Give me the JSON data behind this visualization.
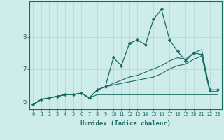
{
  "xlabel": "Humidex (Indice chaleur)",
  "background_color": "#ceecea",
  "grid_color": "#b8d8d6",
  "line_color": "#1a6b63",
  "x_values": [
    0,
    1,
    2,
    3,
    4,
    5,
    6,
    7,
    8,
    9,
    10,
    11,
    12,
    13,
    14,
    15,
    16,
    17,
    18,
    19,
    20,
    21,
    22,
    23
  ],
  "series1": [
    5.9,
    6.05,
    6.1,
    6.15,
    6.2,
    6.2,
    6.25,
    6.1,
    6.35,
    6.45,
    7.35,
    7.1,
    7.8,
    7.9,
    7.75,
    8.55,
    8.85,
    7.9,
    7.55,
    7.25,
    7.5,
    7.45,
    6.35,
    6.35
  ],
  "series2": [
    5.9,
    6.05,
    6.1,
    6.15,
    6.2,
    6.2,
    6.25,
    6.1,
    6.35,
    6.45,
    6.55,
    6.65,
    6.75,
    6.8,
    6.9,
    7.0,
    7.1,
    7.25,
    7.35,
    7.3,
    7.5,
    7.6,
    6.35,
    6.35
  ],
  "series3": [
    5.9,
    6.05,
    6.1,
    6.15,
    6.2,
    6.2,
    6.25,
    6.1,
    6.35,
    6.45,
    6.5,
    6.55,
    6.6,
    6.65,
    6.7,
    6.75,
    6.85,
    7.0,
    7.1,
    7.15,
    7.3,
    7.4,
    6.3,
    6.3
  ],
  "series4": [
    5.9,
    6.05,
    6.1,
    6.15,
    6.2,
    6.2,
    6.25,
    6.1,
    6.2,
    6.2,
    6.2,
    6.2,
    6.2,
    6.2,
    6.2,
    6.2,
    6.2,
    6.2,
    6.2,
    6.2,
    6.2,
    6.2,
    6.2,
    6.2
  ],
  "ylim": [
    5.75,
    9.1
  ],
  "xlim": [
    -0.5,
    23.5
  ],
  "yticks": [
    6,
    7,
    8
  ],
  "xticks": [
    0,
    1,
    2,
    3,
    4,
    5,
    6,
    7,
    8,
    9,
    10,
    11,
    12,
    13,
    14,
    15,
    16,
    17,
    18,
    19,
    20,
    21,
    22,
    23
  ]
}
